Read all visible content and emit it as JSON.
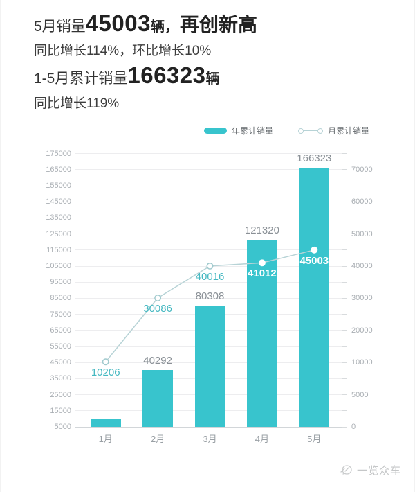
{
  "header": {
    "line1": {
      "prefix": "5月销量",
      "value": "45003",
      "unit": "辆，",
      "highlight": "再创新高"
    },
    "line2": "同比增长114%，环比增长10%",
    "line3": {
      "prefix": "1-5月累计销量",
      "value": "166323",
      "unit": "辆"
    },
    "line4": "同比增长119%"
  },
  "legend": {
    "items": [
      {
        "label": "年累计销量",
        "marker": "bar-swatch"
      },
      {
        "label": "月累计销量",
        "marker": "line-marker"
      }
    ]
  },
  "chart_data": {
    "type": "bar+line",
    "categories": [
      "1月",
      "2月",
      "3月",
      "4月",
      "5月"
    ],
    "series": [
      {
        "name": "年累计销量",
        "type": "bar",
        "axis": "left",
        "values": [
          10206,
          40292,
          80308,
          121320,
          166323
        ],
        "labels": [
          "",
          "40292",
          "80308",
          "121320",
          "166323"
        ]
      },
      {
        "name": "月累计销量",
        "type": "line",
        "axis": "right",
        "values": [
          10206,
          30086,
          40016,
          41012,
          45003
        ],
        "labels": [
          "10206",
          "30086",
          "40016",
          "41012",
          "45003"
        ],
        "label_styles": [
          "teal",
          "teal",
          "teal",
          "white",
          "white"
        ],
        "marker_styles": [
          "hollow",
          "hollow",
          "hollow",
          "solid",
          "solid"
        ]
      }
    ],
    "left_axis": {
      "min": 5000,
      "tick_step": 10000,
      "tick_labels": [
        "5000",
        "15000",
        "25000",
        "35000",
        "45000",
        "55000",
        "65000",
        "75000",
        "85000",
        "95000",
        "105000",
        "115000",
        "125000",
        "135000",
        "145000",
        "155000",
        "165000",
        "175000"
      ]
    },
    "right_axis": {
      "tick_labels": [
        "0",
        "5000",
        "10000",
        "20000",
        "30000",
        "40000",
        "50000",
        "60000",
        "70000"
      ]
    },
    "grid": "horizontal",
    "legend_position": "top"
  },
  "watermark": {
    "text": "一览众车"
  },
  "colors": {
    "bar": "#38c4cd",
    "line": "#b7d3d6",
    "marker_stroke": "#9fc9cd",
    "teal_label": "#45b8c1",
    "white_label": "#ffffff",
    "gray_label": "#8a9096",
    "axis_label": "#a9aeb3",
    "watermark": "#c5c7c8"
  }
}
